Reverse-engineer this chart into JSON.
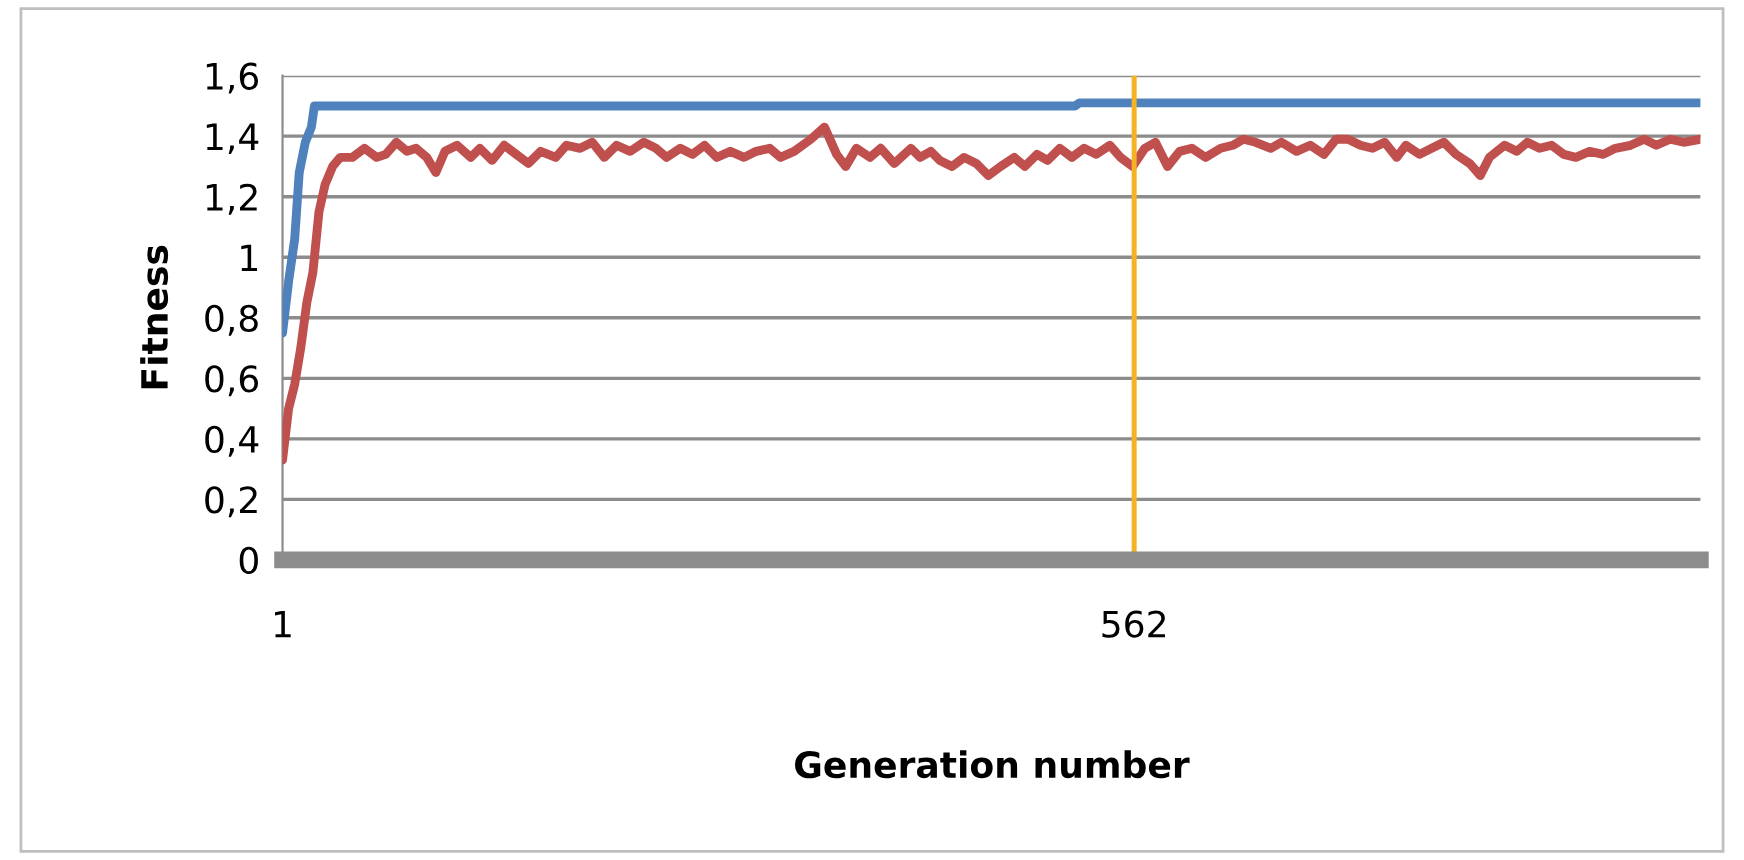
{
  "chart_data": {
    "type": "line",
    "xlabel": "Generation number",
    "ylabel": "Fitness",
    "xlim": [
      1,
      935
    ],
    "xticks": [
      1,
      562
    ],
    "ylim": [
      0,
      1.6
    ],
    "yticks": [
      0,
      {
        "value": 0.2,
        "label": "0,2"
      },
      {
        "value": 0.4,
        "label": "0,4"
      },
      {
        "value": 0.6,
        "label": "0,6"
      },
      {
        "value": 0.8,
        "label": "0,8"
      },
      1,
      {
        "value": 1.2,
        "label": "1,2"
      },
      {
        "value": 1.4,
        "label": "1,4"
      },
      {
        "value": 1.6,
        "label": "1,6"
      }
    ],
    "grid": "y",
    "marker": "none",
    "line_style": "solid",
    "ref_lines": [
      {
        "axis": "x",
        "value": 562,
        "color": "#f5b324"
      }
    ],
    "series": [
      {
        "color": "#4f81bd",
        "x": [
          1,
          5,
          9,
          12,
          16,
          20,
          22,
          523,
          526,
          935
        ],
        "values": [
          0.75,
          0.92,
          1.06,
          1.28,
          1.38,
          1.43,
          1.5,
          1.5,
          1.51,
          1.51
        ]
      },
      {
        "color": "#c0504d",
        "x": [
          1,
          5,
          9,
          13,
          17,
          21,
          25,
          29,
          34,
          39,
          47,
          55,
          63,
          69,
          76,
          83,
          89,
          96,
          102,
          108,
          116,
          125,
          131,
          139,
          147,
          155,
          163,
          171,
          181,
          188,
          197,
          205,
          213,
          221,
          230,
          239,
          247,
          254,
          263,
          271,
          279,
          287,
          296,
          305,
          313,
          322,
          329,
          338,
          349,
          358,
          366,
          372,
          379,
          388,
          395,
          404,
          415,
          421,
          428,
          434,
          442,
          450,
          458,
          466,
          474,
          483,
          490,
          498,
          505,
          513,
          521,
          529,
          537,
          546,
          553,
          561,
          569,
          576,
          584,
          592,
          600,
          609,
          619,
          627,
          634,
          642,
          652,
          659,
          669,
          678,
          687,
          695,
          703,
          711,
          719,
          727,
          735,
          741,
          750,
          758,
          766,
          774,
          783,
          790,
          796,
          806,
          814,
          821,
          829,
          837,
          845,
          853,
          862,
          871,
          879,
          889,
          898,
          906,
          915,
          924,
          935
        ],
        "values": [
          0.33,
          0.5,
          0.58,
          0.7,
          0.85,
          0.95,
          1.15,
          1.24,
          1.3,
          1.33,
          1.33,
          1.36,
          1.33,
          1.34,
          1.38,
          1.35,
          1.36,
          1.33,
          1.28,
          1.35,
          1.37,
          1.33,
          1.36,
          1.32,
          1.37,
          1.34,
          1.31,
          1.35,
          1.33,
          1.37,
          1.36,
          1.38,
          1.33,
          1.37,
          1.35,
          1.38,
          1.36,
          1.33,
          1.36,
          1.34,
          1.37,
          1.33,
          1.35,
          1.33,
          1.35,
          1.36,
          1.33,
          1.35,
          1.39,
          1.43,
          1.34,
          1.3,
          1.36,
          1.33,
          1.36,
          1.31,
          1.36,
          1.33,
          1.35,
          1.32,
          1.3,
          1.33,
          1.31,
          1.27,
          1.3,
          1.33,
          1.3,
          1.34,
          1.32,
          1.36,
          1.33,
          1.36,
          1.34,
          1.37,
          1.33,
          1.3,
          1.36,
          1.38,
          1.3,
          1.35,
          1.36,
          1.33,
          1.36,
          1.37,
          1.39,
          1.38,
          1.36,
          1.38,
          1.35,
          1.37,
          1.34,
          1.39,
          1.39,
          1.37,
          1.36,
          1.38,
          1.33,
          1.37,
          1.34,
          1.36,
          1.38,
          1.34,
          1.31,
          1.27,
          1.33,
          1.37,
          1.35,
          1.38,
          1.36,
          1.37,
          1.34,
          1.33,
          1.35,
          1.34,
          1.36,
          1.37,
          1.39,
          1.37,
          1.39,
          1.38,
          1.39
        ]
      }
    ]
  }
}
